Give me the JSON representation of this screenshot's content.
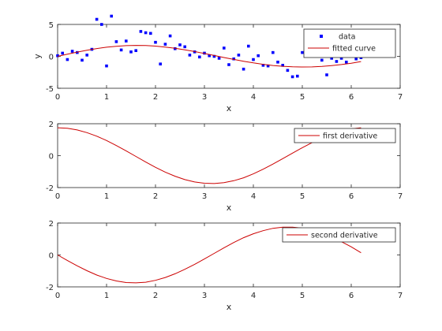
{
  "colors": {
    "data": "#0000ff",
    "curve": "#cc0000",
    "axes": "#262626",
    "legend_border": "#262626"
  },
  "chart_data": [
    {
      "type": "scatter",
      "xlabel": "x",
      "ylabel": "y",
      "xlim": [
        0,
        7
      ],
      "ylim": [
        -5,
        5
      ],
      "xticks": [
        0,
        1,
        2,
        3,
        4,
        5,
        6,
        7
      ],
      "yticks": [
        -5,
        0,
        5
      ],
      "legend": {
        "placement": "top-right",
        "entries": [
          "data",
          "fitted curve"
        ]
      },
      "series": [
        {
          "name": "data",
          "kind": "points",
          "x": [
            0.0,
            0.1,
            0.2,
            0.3,
            0.4,
            0.5,
            0.6,
            0.7,
            0.8,
            0.9,
            1.0,
            1.1,
            1.2,
            1.3,
            1.4,
            1.5,
            1.6,
            1.7,
            1.8,
            1.9,
            2.0,
            2.1,
            2.2,
            2.3,
            2.4,
            2.5,
            2.6,
            2.7,
            2.8,
            2.9,
            3.0,
            3.1,
            3.2,
            3.3,
            3.4,
            3.5,
            3.6,
            3.7,
            3.8,
            3.9,
            4.0,
            4.1,
            4.2,
            4.3,
            4.4,
            4.5,
            4.6,
            4.7,
            4.8,
            4.9,
            5.0,
            5.1,
            5.2,
            5.3,
            5.4,
            5.5,
            5.6,
            5.7,
            5.8,
            5.9,
            6.0,
            6.1,
            6.2
          ],
          "y": [
            0.1,
            0.5,
            -0.5,
            0.8,
            0.6,
            -0.6,
            0.2,
            1.1,
            5.8,
            5.0,
            -1.5,
            6.3,
            2.3,
            1.0,
            2.4,
            0.7,
            0.9,
            3.9,
            3.7,
            3.6,
            2.2,
            -1.2,
            1.9,
            3.2,
            1.2,
            1.8,
            1.5,
            0.2,
            0.7,
            -0.1,
            0.5,
            0.1,
            0.0,
            -0.3,
            1.3,
            -1.3,
            -0.4,
            0.2,
            -2.0,
            1.6,
            -0.5,
            0.1,
            -1.4,
            -1.5,
            0.6,
            -0.9,
            -1.4,
            -2.2,
            -3.2,
            -3.1,
            0.6,
            2.2,
            1.1,
            1.0,
            -0.6,
            -2.9,
            -0.3,
            -0.8,
            -0.3,
            -0.9,
            0.3,
            -0.4,
            -0.2
          ]
        },
        {
          "name": "fitted curve",
          "kind": "line",
          "x": [
            0.0,
            0.2,
            0.4,
            0.6,
            0.8,
            1.0,
            1.2,
            1.4,
            1.6,
            1.8,
            2.0,
            2.2,
            2.4,
            2.6,
            2.8,
            3.0,
            3.2,
            3.4,
            3.6,
            3.8,
            4.0,
            4.2,
            4.4,
            4.6,
            4.8,
            5.0,
            5.2,
            5.4,
            5.6,
            5.8,
            6.0,
            6.2
          ],
          "y": [
            0.0,
            0.34,
            0.67,
            0.96,
            1.22,
            1.43,
            1.58,
            1.68,
            1.71,
            1.69,
            1.6,
            1.45,
            1.26,
            1.02,
            0.75,
            0.45,
            0.14,
            -0.18,
            -0.48,
            -0.77,
            -1.03,
            -1.25,
            -1.43,
            -1.56,
            -1.64,
            -1.67,
            -1.65,
            -1.58,
            -1.45,
            -1.28,
            -1.07,
            -0.82
          ]
        }
      ]
    },
    {
      "type": "line",
      "xlabel": "x",
      "ylabel": "",
      "xlim": [
        0,
        7
      ],
      "ylim": [
        -2,
        2
      ],
      "xticks": [
        0,
        1,
        2,
        3,
        4,
        5,
        6,
        7
      ],
      "yticks": [
        -2,
        0,
        2
      ],
      "legend": {
        "placement": "top-right",
        "entries": [
          "first derivative"
        ]
      },
      "series": [
        {
          "name": "first derivative",
          "kind": "line",
          "x": [
            0.0,
            0.2,
            0.4,
            0.6,
            0.8,
            1.0,
            1.2,
            1.4,
            1.6,
            1.8,
            2.0,
            2.2,
            2.4,
            2.6,
            2.8,
            3.0,
            3.2,
            3.4,
            3.6,
            3.8,
            4.0,
            4.2,
            4.4,
            4.6,
            4.8,
            5.0,
            5.2,
            5.4,
            5.6,
            5.8,
            6.0,
            6.2
          ],
          "y": [
            1.75,
            1.72,
            1.61,
            1.44,
            1.22,
            0.95,
            0.63,
            0.3,
            -0.05,
            -0.4,
            -0.73,
            -1.03,
            -1.29,
            -1.5,
            -1.65,
            -1.73,
            -1.75,
            -1.69,
            -1.57,
            -1.39,
            -1.14,
            -0.85,
            -0.53,
            -0.19,
            0.16,
            0.5,
            0.82,
            1.11,
            1.35,
            1.55,
            1.68,
            1.75
          ]
        }
      ]
    },
    {
      "type": "line",
      "xlabel": "x",
      "ylabel": "",
      "xlim": [
        0,
        7
      ],
      "ylim": [
        -2,
        2
      ],
      "xticks": [
        0,
        1,
        2,
        3,
        4,
        5,
        6,
        7
      ],
      "yticks": [
        -2,
        0,
        2
      ],
      "legend": {
        "placement": "top-right",
        "entries": [
          "second derivative"
        ]
      },
      "series": [
        {
          "name": "second derivative",
          "kind": "line",
          "x": [
            0.0,
            0.2,
            0.4,
            0.6,
            0.8,
            1.0,
            1.2,
            1.4,
            1.6,
            1.8,
            2.0,
            2.2,
            2.4,
            2.6,
            2.8,
            3.0,
            3.2,
            3.4,
            3.6,
            3.8,
            4.0,
            4.2,
            4.4,
            4.6,
            4.8,
            5.0,
            5.2,
            5.4,
            5.6,
            5.8,
            6.0,
            6.2
          ],
          "y": [
            0.0,
            -0.35,
            -0.68,
            -0.99,
            -1.26,
            -1.47,
            -1.63,
            -1.73,
            -1.75,
            -1.71,
            -1.59,
            -1.41,
            -1.18,
            -0.9,
            -0.59,
            -0.25,
            0.1,
            0.45,
            0.78,
            1.08,
            1.33,
            1.52,
            1.67,
            1.74,
            1.74,
            1.68,
            1.55,
            1.36,
            1.12,
            0.83,
            0.51,
            0.14
          ]
        }
      ]
    }
  ]
}
